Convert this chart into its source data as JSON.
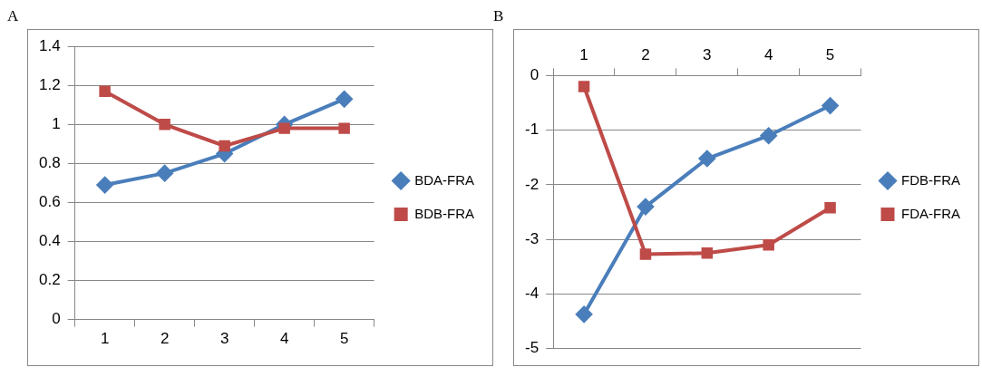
{
  "chart_data": [
    {
      "type": "line",
      "title": "A",
      "categories": [
        "1",
        "2",
        "3",
        "4",
        "5"
      ],
      "series": [
        {
          "name": "BDA-FRA",
          "color": "#4a7ebb",
          "marker": "diamond",
          "values": [
            0.69,
            0.75,
            0.85,
            1.0,
            1.13
          ]
        },
        {
          "name": "BDB-FRA",
          "color": "#be4b48",
          "marker": "square",
          "values": [
            1.17,
            1.0,
            0.89,
            0.98,
            0.98
          ]
        }
      ],
      "ylim": [
        0,
        1.4
      ],
      "yticks": [
        0,
        0.2,
        0.4,
        0.6,
        0.8,
        1,
        1.2,
        1.4
      ],
      "grid": "y",
      "legend": "right"
    },
    {
      "type": "line",
      "title": "B",
      "categories": [
        "1",
        "2",
        "3",
        "4",
        "5"
      ],
      "series": [
        {
          "name": "FDB-FRA",
          "color": "#4a7ebb",
          "marker": "diamond",
          "values": [
            -4.37,
            -2.4,
            -1.52,
            -1.1,
            -0.55
          ]
        },
        {
          "name": "FDA-FRA",
          "color": "#be4b48",
          "marker": "square",
          "values": [
            -0.2,
            -3.27,
            -3.25,
            -3.1,
            -2.42
          ]
        }
      ],
      "ylim": [
        -5,
        0
      ],
      "yticks": [
        -5,
        -4,
        -3,
        -2,
        -1,
        0
      ],
      "grid": "y",
      "legend": "right"
    }
  ]
}
